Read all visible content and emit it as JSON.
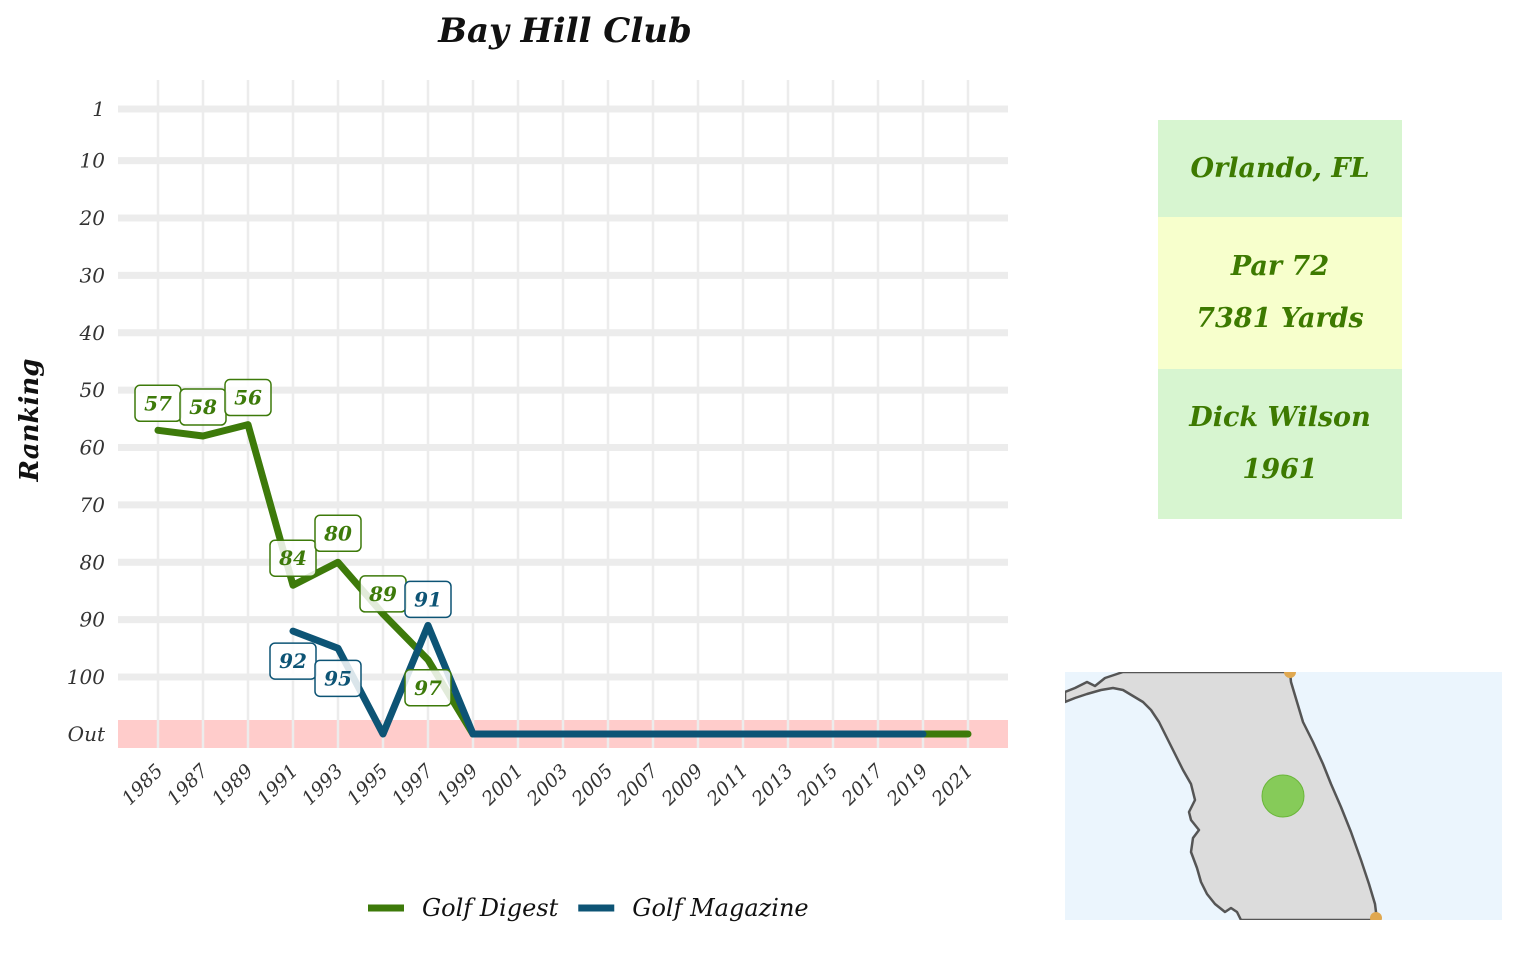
{
  "chart_data": {
    "type": "line",
    "title": "Bay Hill Club",
    "ylabel": "Ranking",
    "xlabel": "",
    "y_reversed": true,
    "y_ticks": [
      "1",
      "10",
      "20",
      "30",
      "40",
      "50",
      "60",
      "70",
      "80",
      "90",
      "100",
      "Out"
    ],
    "x_ticks": [
      1985,
      1987,
      1989,
      1991,
      1993,
      1995,
      1997,
      1999,
      2001,
      2003,
      2005,
      2007,
      2009,
      2011,
      2013,
      2015,
      2017,
      2019,
      2021
    ],
    "xlim": [
      1984,
      2022
    ],
    "out_band_color": "#ffcccb",
    "series": [
      {
        "name": "Golf Digest",
        "color": "#3d7a0a",
        "points": [
          {
            "x": 1985,
            "y": 57,
            "label": "57"
          },
          {
            "x": 1987,
            "y": 58,
            "label": "58"
          },
          {
            "x": 1989,
            "y": 56,
            "label": "56"
          },
          {
            "x": 1991,
            "y": 84,
            "label": "84"
          },
          {
            "x": 1993,
            "y": 80,
            "label": "80"
          },
          {
            "x": 1995,
            "y": 89,
            "label": "89"
          },
          {
            "x": 1997,
            "y": 97,
            "label": "97"
          },
          {
            "x": 1999,
            "y": "Out"
          },
          {
            "x": 2001,
            "y": "Out"
          },
          {
            "x": 2003,
            "y": "Out"
          },
          {
            "x": 2005,
            "y": "Out"
          },
          {
            "x": 2007,
            "y": "Out"
          },
          {
            "x": 2009,
            "y": "Out"
          },
          {
            "x": 2011,
            "y": "Out"
          },
          {
            "x": 2013,
            "y": "Out"
          },
          {
            "x": 2015,
            "y": "Out"
          },
          {
            "x": 2017,
            "y": "Out"
          },
          {
            "x": 2019,
            "y": "Out"
          },
          {
            "x": 2021,
            "y": "Out"
          }
        ]
      },
      {
        "name": "Golf Magazine",
        "color": "#0d5475",
        "points": [
          {
            "x": 1991,
            "y": 92,
            "label": "92"
          },
          {
            "x": 1993,
            "y": 95,
            "label": "95"
          },
          {
            "x": 1995,
            "y": "Out"
          },
          {
            "x": 1997,
            "y": 91,
            "label": "91"
          },
          {
            "x": 1999,
            "y": "Out"
          },
          {
            "x": 2001,
            "y": "Out"
          },
          {
            "x": 2003,
            "y": "Out"
          },
          {
            "x": 2005,
            "y": "Out"
          },
          {
            "x": 2007,
            "y": "Out"
          },
          {
            "x": 2009,
            "y": "Out"
          },
          {
            "x": 2011,
            "y": "Out"
          },
          {
            "x": 2013,
            "y": "Out"
          },
          {
            "x": 2015,
            "y": "Out"
          },
          {
            "x": 2017,
            "y": "Out"
          },
          {
            "x": 2019,
            "y": "Out"
          }
        ]
      }
    ],
    "legend_position": "bottom"
  },
  "info": {
    "city": "Orlando, FL",
    "par": "Par 72",
    "yards": "7381 Yards",
    "architect": "Dick Wilson",
    "year": "1961",
    "city_bg": "#d7f5d0",
    "course_bg": "#f7ffcc",
    "text_color": "#3d7a00"
  },
  "map": {
    "region": "Florida",
    "water_color": "#ebf5fd",
    "land_color": "#dcdcdc",
    "marker_color": "#7cc94a",
    "other_marker_color": "#e0a850"
  }
}
